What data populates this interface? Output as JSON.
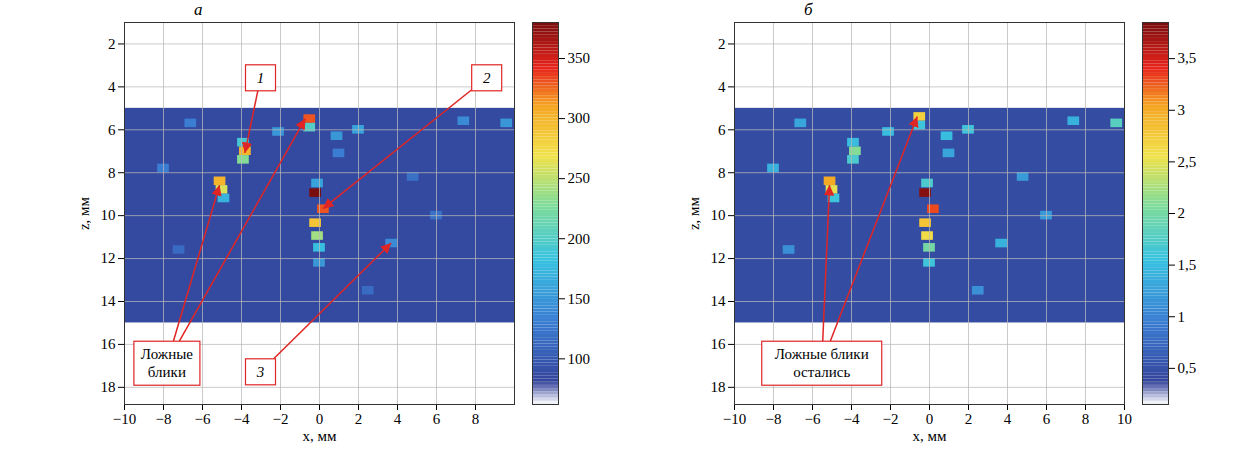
{
  "chart_data": [
    {
      "type": "heatmap",
      "title": "а",
      "xlabel": "x, мм",
      "ylabel": "z, мм",
      "xlim": [
        -10,
        10
      ],
      "xticks": [
        {
          "value": -10,
          "label": "−10"
        },
        {
          "value": -8,
          "label": "−8"
        },
        {
          "value": -6,
          "label": "−6"
        },
        {
          "value": -4,
          "label": "−4"
        },
        {
          "value": -2,
          "label": "−2"
        },
        0,
        2,
        4,
        6,
        8
      ],
      "ylim": [
        1,
        18.8
      ],
      "yticks": [
        2,
        4,
        6,
        8,
        10,
        12,
        14,
        16,
        18
      ],
      "grid": true,
      "image_region": {
        "x": [
          -10,
          10
        ],
        "z": [
          5,
          15
        ],
        "background": 85
      },
      "cells": [
        {
          "x": -0.5,
          "z": 5.5,
          "value": 330
        },
        {
          "x": -0.5,
          "z": 5.9,
          "value": 200
        },
        {
          "x": -3.9,
          "z": 6.6,
          "value": 190
        },
        {
          "x": -3.8,
          "z": 7.0,
          "value": 300
        },
        {
          "x": -3.9,
          "z": 7.4,
          "value": 230
        },
        {
          "x": -5.1,
          "z": 8.4,
          "value": 300
        },
        {
          "x": -5.0,
          "z": 8.8,
          "value": 260
        },
        {
          "x": -4.9,
          "z": 9.2,
          "value": 170
        },
        {
          "x": -0.1,
          "z": 8.5,
          "value": 160
        },
        {
          "x": -0.2,
          "z": 8.95,
          "value": 380
        },
        {
          "x": 0.2,
          "z": 9.7,
          "value": 330
        },
        {
          "x": -0.2,
          "z": 10.35,
          "value": 290
        },
        {
          "x": -0.1,
          "z": 10.95,
          "value": 240
        },
        {
          "x": 0,
          "z": 11.5,
          "value": 180
        },
        {
          "x": 0,
          "z": 12.2,
          "value": 150
        },
        {
          "x": 3.7,
          "z": 11.3,
          "value": 140
        },
        {
          "x": 2.0,
          "z": 6.0,
          "value": 160
        },
        {
          "x": -2.1,
          "z": 6.1,
          "value": 150
        },
        {
          "x": 0.9,
          "z": 6.3,
          "value": 150
        },
        {
          "x": 7.4,
          "z": 5.6,
          "value": 140
        },
        {
          "x": 9.6,
          "z": 5.7,
          "value": 150
        },
        {
          "x": -6.6,
          "z": 5.7,
          "value": 130
        },
        {
          "x": -8.0,
          "z": 7.8,
          "value": 130
        },
        {
          "x": 1.0,
          "z": 7.1,
          "value": 130
        },
        {
          "x": 4.8,
          "z": 8.2,
          "value": 120
        },
        {
          "x": 6.0,
          "z": 10.0,
          "value": 120
        },
        {
          "x": -7.2,
          "z": 11.6,
          "value": 115
        },
        {
          "x": 2.5,
          "z": 13.5,
          "value": 115
        }
      ],
      "colorbar": {
        "range": [
          62,
          380
        ],
        "ticks": [
          100,
          150,
          200,
          250,
          300,
          350
        ]
      },
      "annotations": [
        {
          "text": "1",
          "points": [
            [
              -3.8,
              7.1
            ]
          ]
        },
        {
          "text": "2",
          "points": [
            [
              0.2,
              9.7
            ]
          ]
        },
        {
          "text": "3",
          "points": [
            [
              3.7,
              11.3
            ]
          ]
        },
        {
          "text": "Ложные\nблики",
          "points": [
            [
              -5.1,
              8.6
            ],
            [
              -0.7,
              5.5
            ]
          ]
        }
      ]
    },
    {
      "type": "heatmap",
      "title": "б",
      "xlabel": "x, мм",
      "ylabel": "z, мм",
      "xlim": [
        -10,
        10
      ],
      "xticks": [
        {
          "value": -10,
          "label": "−10"
        },
        {
          "value": -8,
          "label": "−8"
        },
        {
          "value": -6,
          "label": "−6"
        },
        {
          "value": -4,
          "label": "−4"
        },
        {
          "value": -2,
          "label": "−2"
        },
        0,
        2,
        4,
        6,
        8,
        10
      ],
      "ylim": [
        1,
        18.8
      ],
      "yticks": [
        2,
        4,
        6,
        8,
        10,
        12,
        14,
        16,
        18
      ],
      "grid": true,
      "image_region": {
        "x": [
          -10,
          10
        ],
        "z": [
          5,
          15
        ],
        "background": 0.45
      },
      "cells": [
        {
          "x": -0.5,
          "z": 5.4,
          "value": 2.7
        },
        {
          "x": -0.5,
          "z": 5.8,
          "value": 1.6
        },
        {
          "x": -3.9,
          "z": 6.6,
          "value": 1.5
        },
        {
          "x": -3.8,
          "z": 7.0,
          "value": 2.1
        },
        {
          "x": -3.9,
          "z": 7.4,
          "value": 1.7
        },
        {
          "x": -5.1,
          "z": 8.4,
          "value": 3.0
        },
        {
          "x": -5.0,
          "z": 8.8,
          "value": 2.5
        },
        {
          "x": -4.9,
          "z": 9.2,
          "value": 1.6
        },
        {
          "x": -0.1,
          "z": 8.5,
          "value": 1.7
        },
        {
          "x": -0.2,
          "z": 8.95,
          "value": 3.8
        },
        {
          "x": 0.2,
          "z": 9.7,
          "value": 3.3
        },
        {
          "x": -0.2,
          "z": 10.35,
          "value": 2.8
        },
        {
          "x": -0.1,
          "z": 10.95,
          "value": 2.6
        },
        {
          "x": 0,
          "z": 11.5,
          "value": 2.0
        },
        {
          "x": 0,
          "z": 12.2,
          "value": 1.6
        },
        {
          "x": 3.7,
          "z": 11.3,
          "value": 1.4
        },
        {
          "x": 2.0,
          "z": 6.0,
          "value": 1.6
        },
        {
          "x": -2.1,
          "z": 6.1,
          "value": 1.5
        },
        {
          "x": 0.9,
          "z": 6.3,
          "value": 1.5
        },
        {
          "x": 7.4,
          "z": 5.6,
          "value": 1.4
        },
        {
          "x": 9.6,
          "z": 5.7,
          "value": 1.8
        },
        {
          "x": -6.6,
          "z": 5.7,
          "value": 1.3
        },
        {
          "x": -8.0,
          "z": 7.8,
          "value": 1.4
        },
        {
          "x": 1.0,
          "z": 7.1,
          "value": 1.3
        },
        {
          "x": 4.8,
          "z": 8.2,
          "value": 1.2
        },
        {
          "x": 6.0,
          "z": 10.0,
          "value": 1.2
        },
        {
          "x": -7.2,
          "z": 11.6,
          "value": 1.1
        },
        {
          "x": 2.5,
          "z": 13.5,
          "value": 1.1
        }
      ],
      "colorbar": {
        "range": [
          0.15,
          3.85
        ],
        "ticks": [
          {
            "value": 0.5,
            "label": "0,5"
          },
          1,
          {
            "value": 1.5,
            "label": "1,5"
          },
          2,
          {
            "value": 2.5,
            "label": "2,5"
          },
          3,
          {
            "value": 3.5,
            "label": "3,5"
          }
        ]
      },
      "annotations": [
        {
          "text": "Ложные блики\nостались",
          "points": [
            [
              -5.1,
              8.6
            ],
            [
              -0.6,
              5.4
            ]
          ]
        }
      ]
    }
  ]
}
